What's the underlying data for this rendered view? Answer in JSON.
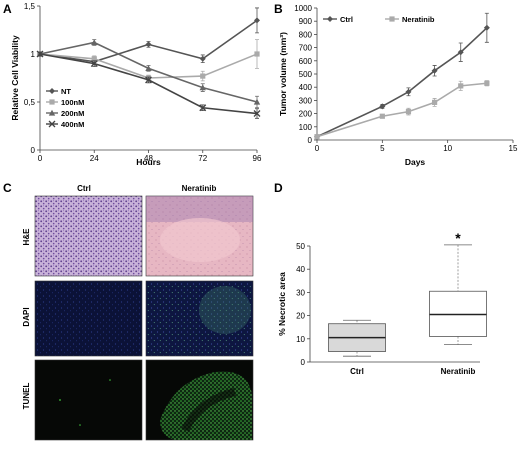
{
  "panels": {
    "a": "A",
    "b": "B",
    "c": "C",
    "d": "D"
  },
  "colors": {
    "nt": "#555555",
    "n100": "#aaaaaa",
    "n200": "#666666",
    "n400": "#444444",
    "ctrl": "#555555",
    "neratinib": "#aaaaaa"
  },
  "chart_data": [
    {
      "type": "line",
      "xlabel": "Hours",
      "ylabel": "Relative Cell Viability",
      "xlim": [
        0,
        96
      ],
      "ylim": [
        0,
        1.5
      ],
      "xticks": [
        "0",
        "24",
        "48",
        "72",
        "96"
      ],
      "yticks": [
        "0",
        "0,5",
        "1",
        "1,5"
      ],
      "x": [
        0,
        24,
        48,
        72,
        96
      ],
      "legend_position": "bottom-left",
      "series": [
        {
          "name": "NT",
          "marker": "diamond",
          "values": [
            1.0,
            0.92,
            1.1,
            0.95,
            1.35
          ],
          "err": [
            0.02,
            0.03,
            0.03,
            0.04,
            0.13
          ]
        },
        {
          "name": "100nM",
          "marker": "square",
          "values": [
            1.0,
            0.95,
            0.75,
            0.77,
            1.0
          ],
          "err": [
            0.02,
            0.03,
            0.03,
            0.05,
            0.15
          ]
        },
        {
          "name": "200nM",
          "marker": "triangle",
          "values": [
            1.0,
            1.12,
            0.85,
            0.65,
            0.5
          ],
          "err": [
            0.02,
            0.03,
            0.03,
            0.04,
            0.06
          ]
        },
        {
          "name": "400nM",
          "marker": "cross",
          "values": [
            1.0,
            0.9,
            0.73,
            0.44,
            0.38
          ],
          "err": [
            0.02,
            0.03,
            0.03,
            0.03,
            0.05
          ]
        }
      ]
    },
    {
      "type": "line",
      "xlabel": "Days",
      "ylabel": "Tumor volume (mm³)",
      "xlim": [
        0,
        15
      ],
      "ylim": [
        0,
        1000
      ],
      "xticks": [
        "0",
        "5",
        "10",
        "15"
      ],
      "yticks": [
        "0",
        "100",
        "200",
        "300",
        "400",
        "500",
        "600",
        "700",
        "800",
        "900",
        "1000"
      ],
      "legend_position": "top-left",
      "series": [
        {
          "name": "Ctrl",
          "marker": "diamond",
          "x": [
            0,
            5,
            7,
            9,
            11,
            13
          ],
          "values": [
            25,
            255,
            365,
            525,
            665,
            850
          ],
          "err": [
            5,
            15,
            30,
            40,
            70,
            110
          ]
        },
        {
          "name": "Neratinib",
          "marker": "square",
          "x": [
            0,
            5,
            7,
            9,
            11,
            13
          ],
          "values": [
            25,
            180,
            215,
            285,
            410,
            430
          ],
          "err": [
            5,
            10,
            25,
            30,
            35,
            20
          ]
        }
      ]
    },
    {
      "type": "box",
      "ylabel": "% Necrotic area",
      "ylim": [
        0,
        50
      ],
      "yticks": [
        "0",
        "10",
        "20",
        "30",
        "40",
        "50"
      ],
      "categories": [
        "Ctrl",
        "Neratinib"
      ],
      "boxes": [
        {
          "name": "Ctrl",
          "min": 2.5,
          "q1": 4.5,
          "median": 10.5,
          "q3": 16.5,
          "max": 18
        },
        {
          "name": "Neratinib",
          "min": 7.5,
          "q1": 11,
          "median": 20.5,
          "q3": 30.5,
          "max": 50.5
        }
      ],
      "annotation": "*"
    }
  ],
  "micrographs": {
    "columns": [
      "Ctrl",
      "Neratinib"
    ],
    "rows": [
      "H&E",
      "DAPI",
      "TUNEL"
    ]
  }
}
